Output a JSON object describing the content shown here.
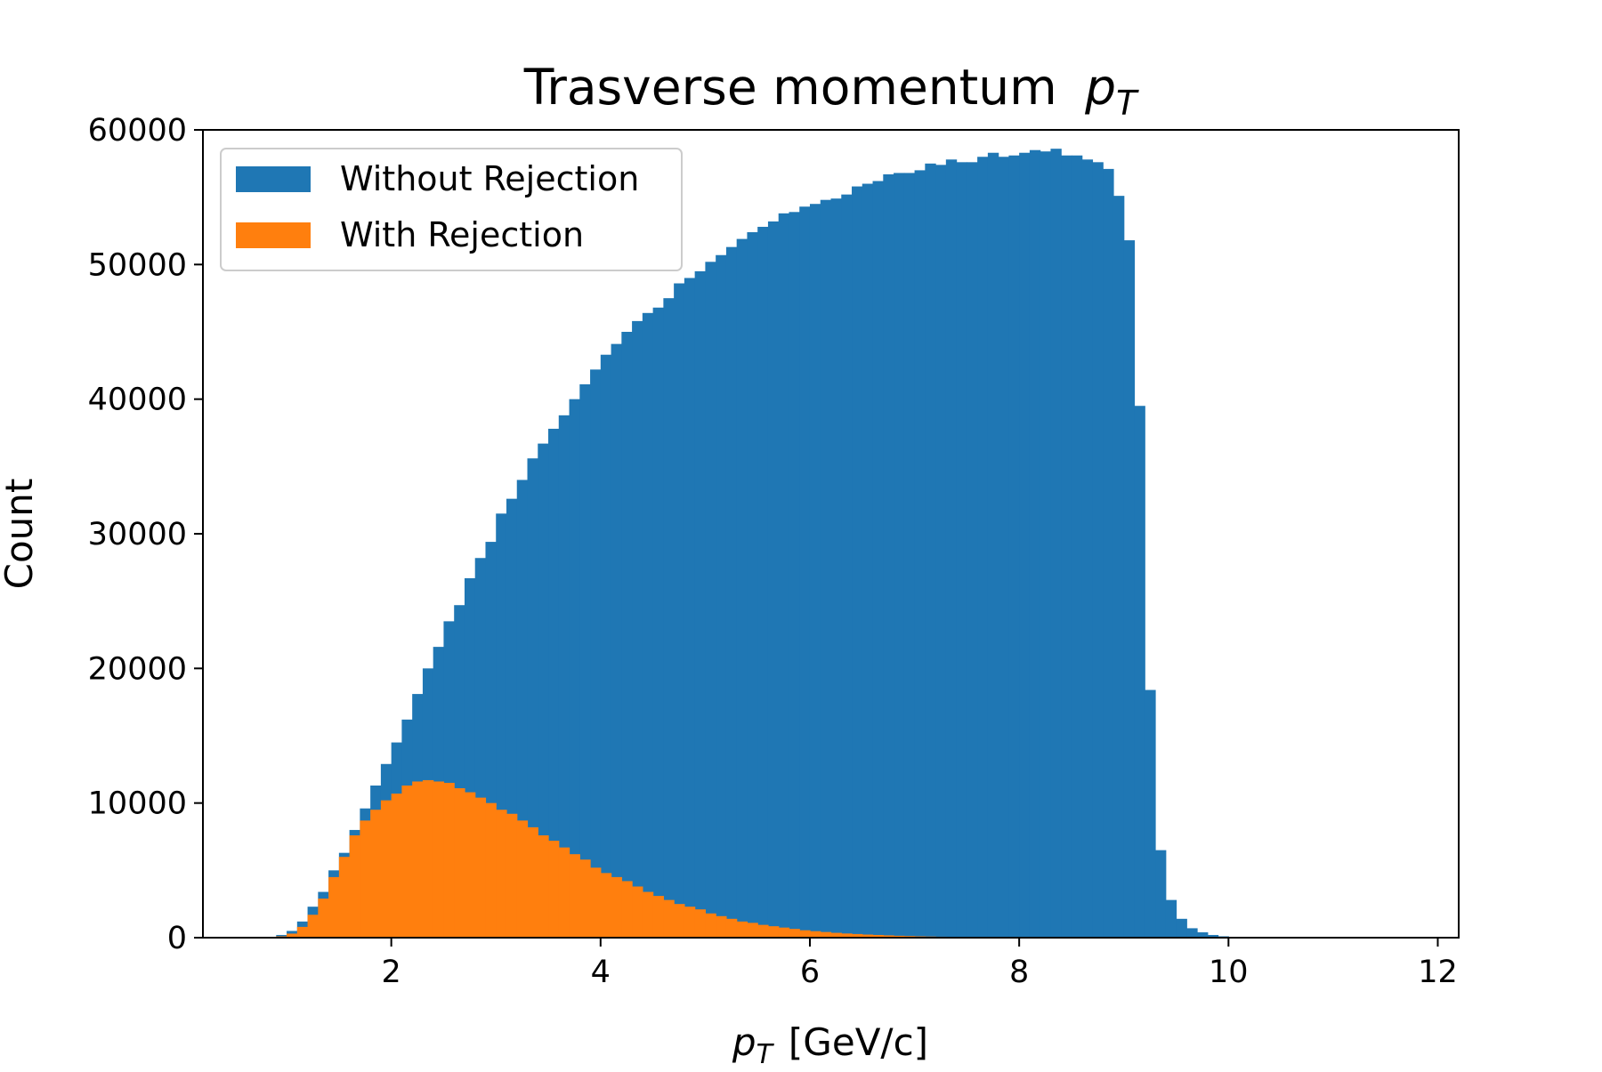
{
  "chart_data": {
    "type": "histogram",
    "title": "Trasverse momentum",
    "title_symbol": {
      "base": "p",
      "sub": "T"
    },
    "xlabel_symbol": {
      "base": "p",
      "sub": "T"
    },
    "xlabel_unit": "[GeV/c]",
    "ylabel": "Count",
    "xlim": [
      0.2,
      12.2
    ],
    "ylim": [
      0,
      60000
    ],
    "xticks": [
      2,
      4,
      6,
      8,
      10,
      12
    ],
    "yticks": [
      0,
      10000,
      20000,
      30000,
      40000,
      50000,
      60000
    ],
    "bin_start": 0.9,
    "bin_width": 0.1,
    "legend_position": "upper-left",
    "grid": false,
    "series": [
      {
        "name": "Without Rejection",
        "color": "#1f77b4",
        "values": [
          200,
          500,
          1200,
          2300,
          3400,
          5000,
          6300,
          8000,
          9600,
          11300,
          12900,
          14500,
          16200,
          18100,
          20000,
          21600,
          23500,
          24700,
          26700,
          28200,
          29400,
          31500,
          32600,
          34000,
          35600,
          36700,
          37800,
          38800,
          40000,
          41100,
          42200,
          43300,
          44100,
          45000,
          45800,
          46400,
          46800,
          47500,
          48600,
          49000,
          49500,
          50200,
          50700,
          51300,
          51900,
          52400,
          52800,
          53200,
          53800,
          53900,
          54300,
          54500,
          54800,
          54900,
          55200,
          55800,
          56000,
          56200,
          56700,
          56800,
          56800,
          57000,
          57500,
          57400,
          57800,
          57600,
          57600,
          58000,
          58300,
          58000,
          58100,
          58300,
          58500,
          58400,
          58600,
          58100,
          58100,
          57800,
          57600,
          57100,
          55100,
          51800,
          39500,
          18400,
          6500,
          2800,
          1400,
          700,
          400,
          200,
          100
        ]
      },
      {
        "name": "With Rejection",
        "color": "#ff7f0e",
        "values": [
          100,
          300,
          800,
          1700,
          2900,
          4500,
          6000,
          7600,
          8700,
          9500,
          10200,
          10700,
          11300,
          11600,
          11700,
          11600,
          11500,
          11100,
          10800,
          10400,
          10000,
          9500,
          9200,
          8700,
          8200,
          7600,
          7200,
          6700,
          6200,
          5800,
          5200,
          4800,
          4500,
          4200,
          3800,
          3400,
          3100,
          2800,
          2500,
          2300,
          2100,
          1800,
          1600,
          1400,
          1200,
          1100,
          950,
          850,
          750,
          650,
          550,
          480,
          420,
          360,
          310,
          270,
          230,
          200,
          170,
          140,
          120,
          100,
          85,
          70,
          60,
          50,
          40,
          30,
          25,
          20,
          15,
          10,
          8,
          6,
          4,
          3,
          2,
          1,
          1,
          0,
          0,
          0,
          0,
          0,
          0,
          0,
          0,
          0,
          0,
          0,
          0
        ]
      }
    ]
  }
}
